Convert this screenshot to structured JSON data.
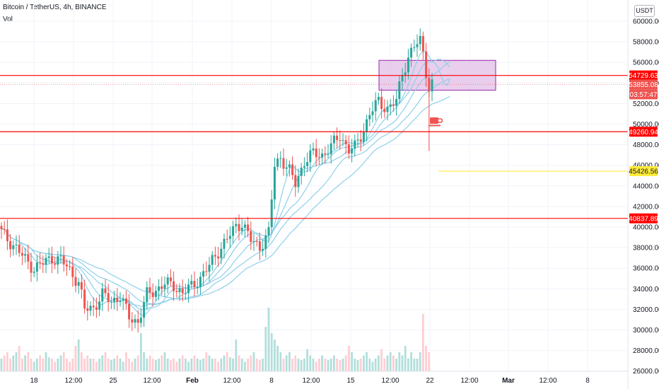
{
  "header": {
    "symbol_line": "Bitcoin / TetherUS, 4h, BINANCE",
    "indicator": "Vol"
  },
  "currency_button": "USDT",
  "colors": {
    "up": "#26a69a",
    "down": "#ef5350",
    "ribbon": "#8fd0ea",
    "level_line": "#ff0000",
    "yellow_line": "#ffeb3b",
    "zone_fill": "#e1bee7",
    "zone_border": "#9c27b0",
    "vol_up": "#b2dfdb",
    "vol_down": "#ffcdd2"
  },
  "chart_data": {
    "type": "candlestick",
    "symbol": "Bitcoin / TetherUS",
    "interval": "4h",
    "exchange": "BINANCE",
    "price_axis_ticks": [
      "60000.00",
      "58000.00",
      "56000.00",
      "54000.00",
      "52000.00",
      "50000.00",
      "48000.00",
      "46000.00",
      "44000.00",
      "42000.00",
      "40000.00",
      "38000.00",
      "36000.00",
      "34000.00",
      "32000.00",
      "30000.00",
      "28000.00",
      "26000.00"
    ],
    "time_axis_ticks": [
      "18",
      "12:00",
      "25",
      "12:00",
      "Feb",
      "12:00",
      "8",
      "12:00",
      "15",
      "12:00",
      "22",
      "12:00",
      "Mar",
      "12:00",
      "8"
    ],
    "horizontal_levels": [
      {
        "price": 54729.63,
        "label": "54729.63",
        "color": "#ff0000"
      },
      {
        "price": 49260.94,
        "label": "49260.94",
        "color": "#ff0000"
      },
      {
        "price": 40837.89,
        "label": "40837.89",
        "color": "#ff0000"
      }
    ],
    "ray_levels": [
      {
        "price": 45426.56,
        "label": "45426.56",
        "color": "#ffeb3b"
      }
    ],
    "last_price": {
      "price": 53855.08,
      "label": "53855.08",
      "countdown": "03:57:47"
    },
    "zone": {
      "price_top": 56200,
      "price_bottom": 53300
    },
    "ribbon_count": 5,
    "price_path": [
      [
        0,
        39500
      ],
      [
        2,
        38800
      ],
      [
        5,
        38000
      ],
      [
        8,
        36800
      ],
      [
        11,
        36000
      ],
      [
        14,
        36500
      ],
      [
        17,
        37000
      ],
      [
        20,
        36800
      ],
      [
        23,
        35800
      ],
      [
        26,
        34600
      ],
      [
        28,
        32000
      ],
      [
        31,
        32200
      ],
      [
        34,
        33400
      ],
      [
        37,
        32800
      ],
      [
        40,
        33300
      ],
      [
        43,
        31200
      ],
      [
        46,
        30800
      ],
      [
        49,
        33400
      ],
      [
        52,
        33900
      ],
      [
        55,
        34500
      ],
      [
        58,
        34300
      ],
      [
        61,
        33600
      ],
      [
        64,
        34200
      ],
      [
        67,
        35100
      ],
      [
        70,
        36200
      ],
      [
        73,
        37700
      ],
      [
        76,
        38800
      ],
      [
        79,
        40100
      ],
      [
        81,
        40400
      ],
      [
        84,
        38700
      ],
      [
        87,
        38100
      ],
      [
        90,
        39400
      ],
      [
        92,
        46000
      ],
      [
        94,
        46800
      ],
      [
        97,
        45400
      ],
      [
        99,
        44200
      ],
      [
        102,
        46400
      ],
      [
        105,
        47100
      ],
      [
        108,
        47000
      ],
      [
        111,
        47800
      ],
      [
        114,
        48900
      ],
      [
        117,
        47500
      ],
      [
        119,
        47700
      ],
      [
        122,
        49500
      ],
      [
        124,
        51000
      ],
      [
        127,
        52200
      ],
      [
        130,
        51500
      ],
      [
        133,
        52200
      ],
      [
        135,
        55000
      ],
      [
        137,
        56500
      ],
      [
        139,
        57500
      ],
      [
        141,
        58100
      ],
      [
        142,
        57000
      ],
      [
        143,
        55200
      ],
      [
        144,
        53500
      ],
      [
        145,
        53855
      ]
    ]
  },
  "volume_bars": [
    2,
    2.5,
    3,
    2,
    2.5,
    3,
    4,
    2,
    2.5,
    3,
    2,
    1.5,
    2,
    2.5,
    2,
    3,
    2.2,
    2,
    1.5,
    2,
    2.5,
    3,
    2,
    1.5,
    2,
    4,
    5,
    3,
    2,
    2.5,
    2,
    2,
    1.5,
    2,
    2.5,
    3,
    2,
    1.8,
    2,
    2.5,
    2,
    1.5,
    3,
    2,
    1.5,
    2,
    2.5,
    6,
    3,
    2,
    2.5,
    2,
    1.8,
    2,
    2.5,
    3,
    2,
    1.8,
    2,
    1.5,
    2,
    2.5,
    2,
    1.5,
    2,
    2.5,
    2,
    1.8,
    2,
    3,
    2.5,
    2,
    2,
    1.5,
    2,
    2.5,
    3,
    2.2,
    2,
    5,
    2.5,
    2,
    1.5,
    2,
    2.5,
    3,
    2,
    1.8,
    2,
    7,
    10,
    6,
    5,
    4,
    3,
    2,
    2.5,
    3,
    2,
    2.5,
    2,
    1.8,
    2,
    3.5,
    2.5,
    2,
    1.5,
    2,
    2.5,
    2,
    1.8,
    2,
    2.5,
    2,
    1.8,
    2,
    2.5,
    4,
    3,
    2,
    1.8,
    2,
    2.5,
    3,
    2,
    1.5,
    2,
    2.5,
    3.5,
    2,
    2.5,
    3,
    2.5,
    2,
    3,
    2.5,
    4,
    2,
    3,
    2,
    2,
    3,
    9,
    4,
    3
  ]
}
